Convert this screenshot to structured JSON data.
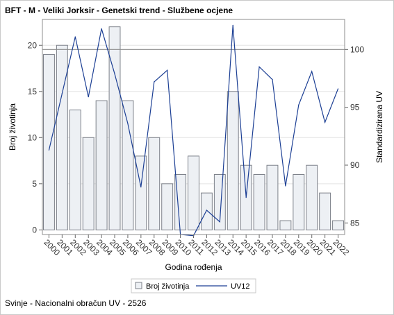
{
  "title": "BFT - M - Veliki Jorksir - Genetski trend - Službene ocjene",
  "footnote": "Svinje - Nacionalni obračun UV - 2526",
  "chart_data": {
    "type": "bar+line",
    "categories": [
      "2000",
      "2001",
      "2002",
      "2003",
      "2004",
      "2005",
      "2006",
      "2007",
      "2008",
      "2009",
      "2010",
      "2011",
      "2012",
      "2013",
      "2014",
      "2015",
      "2016",
      "2017",
      "2018",
      "2019",
      "2020",
      "2021",
      "2022"
    ],
    "series": [
      {
        "name": "Broj životinja",
        "type": "bar",
        "axis": "left",
        "values": [
          19,
          20,
          13,
          10,
          14,
          22,
          14,
          8,
          10,
          5,
          6,
          8,
          4,
          6,
          15,
          7,
          6,
          7,
          1,
          6,
          7,
          4,
          1
        ]
      },
      {
        "name": "UV12",
        "type": "line",
        "axis": "right",
        "values": [
          91.3,
          96.2,
          101.1,
          95.9,
          101.8,
          97.9,
          93.6,
          88.1,
          97.2,
          98.2,
          84.0,
          83.9,
          86.1,
          85.1,
          102.1,
          87.2,
          98.5,
          97.4,
          88.2,
          95.2,
          98.1,
          93.7,
          96.6
        ]
      }
    ],
    "xlabel": "Godina rođenja",
    "ylabel_left": "Broj životinja",
    "ylabel_right": "Standardizirana UV",
    "ylim_left": [
      -0.5,
      22.8
    ],
    "ylim_right": [
      84.0,
      102.6
    ],
    "yticks_left": [
      0,
      5,
      10,
      15,
      20
    ],
    "yticks_right": [
      85,
      90,
      95,
      100
    ],
    "reference_line_right": 100,
    "grid": "horizontal",
    "legend_position": "bottom"
  }
}
